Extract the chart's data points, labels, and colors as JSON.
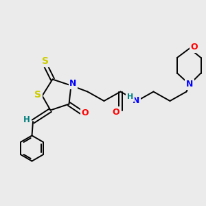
{
  "background_color": "#ebebeb",
  "bond_color": "#000000",
  "atom_colors": {
    "S": "#cccc00",
    "N": "#0000ff",
    "O": "#ff0000",
    "H": "#008080",
    "C": "#000000"
  },
  "figsize": [
    3.0,
    3.0
  ],
  "dpi": 100
}
